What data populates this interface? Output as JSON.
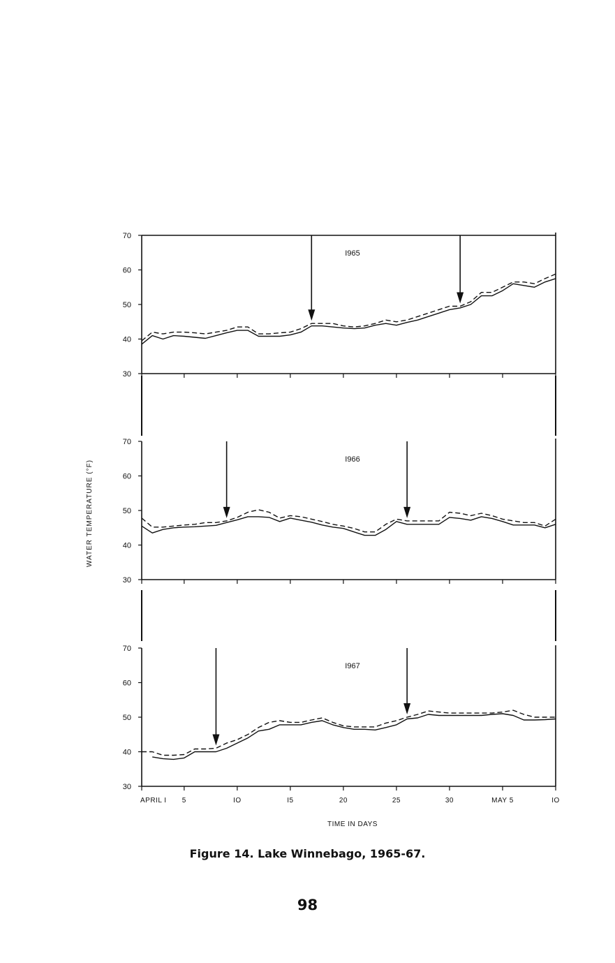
{
  "figure": {
    "caption": "Figure 14.  Lake Winnebago, 1965-67.",
    "page_number": "98"
  },
  "chart_data": {
    "type": "line",
    "ylabel": "WATER  TEMPERATURE  (°F)",
    "xlabel": "TIME  IN  DAYS",
    "ylim": [
      30,
      70
    ],
    "yticks": [
      "30",
      "40",
      "50",
      "60",
      "70"
    ],
    "xlim": [
      1,
      40
    ],
    "xtick_values": [
      1,
      5,
      10,
      15,
      20,
      25,
      30,
      35,
      40
    ],
    "xtick_labels": [
      "APRIL I",
      "5",
      "IO",
      "I5",
      "20",
      "25",
      "30",
      "MAY 5",
      "IO"
    ],
    "line_color": "#111111",
    "panels": [
      {
        "year": "I965",
        "arrows_at_day": [
          17,
          31
        ],
        "series": [
          {
            "style": "solid",
            "x": [
              1,
              2,
              3,
              4,
              5,
              6,
              7,
              8,
              9,
              10,
              11,
              12,
              13,
              14,
              15,
              16,
              17,
              18,
              19,
              20,
              21,
              22,
              23,
              24,
              25,
              26,
              27,
              28,
              29,
              30,
              31,
              32,
              33,
              34,
              35,
              36,
              37,
              38,
              39,
              40
            ],
            "y": [
              38.5,
              41,
              40,
              41,
              40.8,
              40.5,
              40.2,
              41,
              41.8,
              42.5,
              42.5,
              40.8,
              40.8,
              40.8,
              41.2,
              42,
              43.8,
              43.8,
              43.5,
              43.2,
              43,
              43.2,
              44,
              44.5,
              44,
              44.8,
              45.5,
              46.5,
              47.5,
              48.5,
              49,
              50,
              52.5,
              52.5,
              54,
              56,
              55.5,
              55,
              56.5,
              57.5
            ]
          },
          {
            "style": "dashed",
            "x": [
              1,
              2,
              3,
              4,
              5,
              6,
              7,
              8,
              9,
              10,
              11,
              12,
              13,
              14,
              15,
              16,
              17,
              18,
              19,
              20,
              21,
              22,
              23,
              24,
              25,
              26,
              27,
              28,
              29,
              30,
              31,
              32,
              33,
              34,
              35,
              36,
              37,
              38,
              39,
              40
            ],
            "y": [
              39.5,
              42,
              41.5,
              42,
              42,
              41.8,
              41.5,
              42,
              42.5,
              43.5,
              43.5,
              41.5,
              41.5,
              41.8,
              42,
              43,
              44.5,
              44.5,
              44.5,
              43.8,
              43.5,
              43.8,
              44.5,
              45.5,
              45,
              45.5,
              46.5,
              47.5,
              48.5,
              49.5,
              49.5,
              50.8,
              53.5,
              53.5,
              55,
              56.5,
              56.5,
              56,
              57.5,
              58.8
            ]
          }
        ]
      },
      {
        "year": "I966",
        "arrows_at_day": [
          9,
          26
        ],
        "series": [
          {
            "style": "solid",
            "x": [
              1,
              2,
              3,
              4,
              5,
              6,
              7,
              8,
              9,
              10,
              11,
              12,
              13,
              14,
              15,
              16,
              17,
              18,
              19,
              20,
              21,
              22,
              23,
              24,
              25,
              26,
              27,
              28,
              29,
              30,
              31,
              32,
              33,
              34,
              35,
              36,
              37,
              38,
              39,
              40
            ],
            "y": [
              45.5,
              43.5,
              44.5,
              45,
              45.2,
              45.3,
              45.5,
              45.7,
              46.5,
              47.3,
              48.2,
              48.2,
              48,
              46.8,
              47.8,
              47.2,
              46.6,
              45.8,
              45.2,
              44.8,
              43.8,
              42.8,
              42.8,
              44.5,
              46.8,
              46,
              46,
              46,
              46,
              48,
              47.7,
              47.2,
              48.2,
              47.7,
              46.8,
              45.8,
              45.8,
              45.8,
              45,
              46
            ]
          },
          {
            "style": "dashed",
            "x": [
              1,
              2,
              3,
              4,
              5,
              6,
              7,
              8,
              9,
              10,
              11,
              12,
              13,
              14,
              15,
              16,
              17,
              18,
              19,
              20,
              21,
              22,
              23,
              24,
              25,
              26,
              27,
              28,
              29,
              30,
              31,
              32,
              33,
              34,
              35,
              36,
              37,
              38,
              39,
              40
            ],
            "y": [
              47.8,
              45.2,
              45.2,
              45.5,
              45.8,
              46,
              46.5,
              46.5,
              47,
              48,
              49.5,
              50.2,
              49.5,
              47.8,
              48.5,
              48.2,
              47.5,
              46.8,
              46,
              45.5,
              44.8,
              43.8,
              43.8,
              46,
              47.5,
              47,
              47,
              47,
              47,
              49.5,
              49.2,
              48.5,
              49.2,
              48.5,
              47.5,
              47,
              46.5,
              46.5,
              45.5,
              47.5
            ]
          }
        ]
      },
      {
        "year": "I967",
        "arrows_at_day": [
          8,
          26
        ],
        "series": [
          {
            "style": "solid",
            "x": [
              2,
              3,
              4,
              5,
              6,
              7,
              8,
              9,
              10,
              11,
              12,
              13,
              14,
              15,
              16,
              17,
              18,
              19,
              20,
              21,
              22,
              23,
              24,
              25,
              26,
              27,
              28,
              29,
              30,
              31,
              32,
              33,
              34,
              35,
              36,
              37,
              38,
              39,
              40
            ],
            "y": [
              38.5,
              38,
              37.8,
              38.2,
              40,
              40,
              40,
              41,
              42.5,
              44,
              46,
              46.5,
              47.8,
              47.8,
              47.8,
              48.5,
              49,
              47.8,
              47,
              46.5,
              46.5,
              46.3,
              47,
              47.8,
              49.5,
              49.8,
              50.8,
              50.5,
              50.5,
              50.5,
              50.5,
              50.5,
              50.8,
              51,
              50.5,
              49.2,
              49.2,
              49.3,
              49.5
            ]
          },
          {
            "style": "dashed",
            "x": [
              1,
              2,
              3,
              4,
              5,
              6,
              7,
              8,
              9,
              10,
              11,
              12,
              13,
              14,
              15,
              16,
              17,
              18,
              19,
              20,
              21,
              22,
              23,
              24,
              25,
              26,
              27,
              28,
              29,
              30,
              31,
              32,
              33,
              34,
              35,
              36,
              37,
              38,
              39,
              40
            ],
            "y": [
              40,
              40,
              39,
              39,
              39.2,
              40.8,
              40.8,
              41,
              42.5,
              43.5,
              45,
              47,
              48.5,
              49,
              48.5,
              48.5,
              49.2,
              49.8,
              48.5,
              47.5,
              47.2,
              47.2,
              47.2,
              48.3,
              49,
              50,
              50.8,
              51.8,
              51.5,
              51.2,
              51.2,
              51.2,
              51.2,
              51.2,
              51.5,
              52,
              50.8,
              50,
              50,
              50
            ]
          }
        ]
      }
    ]
  }
}
